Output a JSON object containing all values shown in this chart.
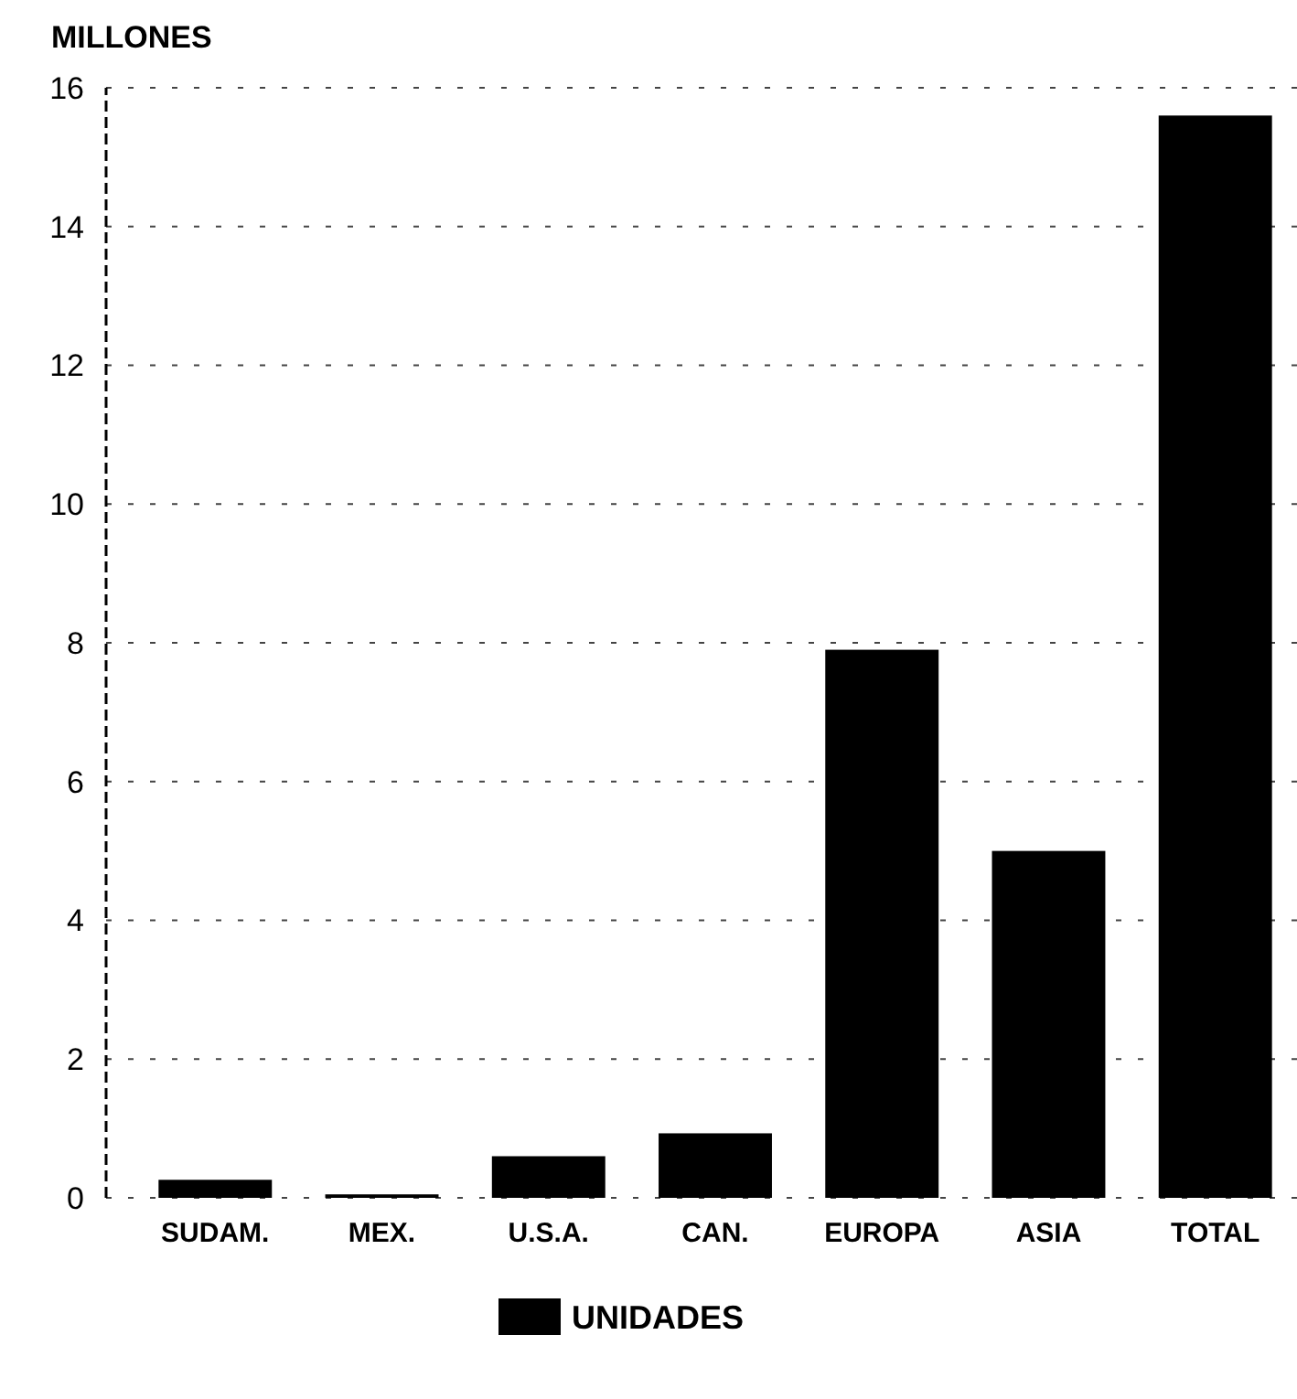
{
  "chart_data": {
    "type": "bar",
    "ylabel": "MILLONES",
    "categories": [
      "SUDAM.",
      "MEX.",
      "U.S.A.",
      "CAN.",
      "EUROPA",
      "ASIA",
      "TOTAL"
    ],
    "series": [
      {
        "name": "UNIDADES",
        "color": "#000000",
        "values": [
          0.26,
          0.05,
          0.6,
          0.93,
          7.9,
          5.0,
          15.6
        ]
      }
    ],
    "ylim": [
      0,
      16
    ],
    "yticks": [
      0,
      2,
      4,
      6,
      8,
      10,
      12,
      14,
      16
    ],
    "grid": "y",
    "legend": "bottom"
  }
}
